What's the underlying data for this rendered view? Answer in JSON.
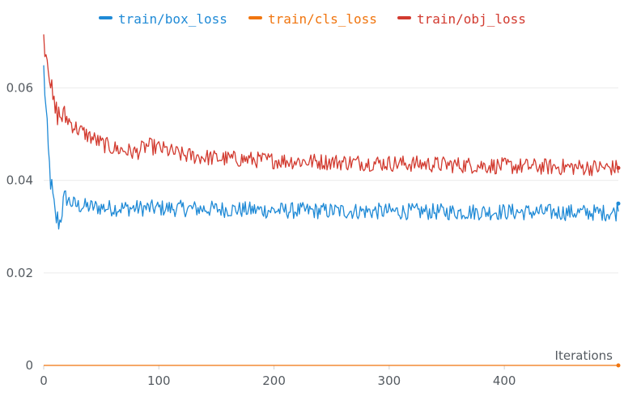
{
  "chart_data": {
    "type": "line",
    "title": "",
    "xlabel": "Iterations",
    "ylabel": "",
    "xlim": [
      0,
      499
    ],
    "ylim": [
      0,
      0.072
    ],
    "x_ticks": [
      0,
      100,
      200,
      300,
      400
    ],
    "x_tick_labels": [
      "0",
      "100",
      "200",
      "300",
      "400"
    ],
    "y_ticks": [
      0,
      0.02,
      0.04,
      0.06
    ],
    "y_tick_labels": [
      "0",
      "0.02",
      "0.04",
      "0.06"
    ],
    "grid": "horizontal",
    "legend_position": "top",
    "series": [
      {
        "name": "train/box_loss",
        "color": "#1f8ad6",
        "x": [
          0,
          2,
          4,
          6,
          8,
          10,
          12,
          14,
          16,
          18,
          20,
          22,
          25,
          30,
          40,
          60,
          80,
          100,
          150,
          200,
          250,
          300,
          350,
          400,
          450,
          497,
          499
        ],
        "values": [
          0.064,
          0.055,
          0.046,
          0.04,
          0.036,
          0.032,
          0.0315,
          0.031,
          0.034,
          0.0355,
          0.036,
          0.0355,
          0.035,
          0.0345,
          0.0343,
          0.034,
          0.034,
          0.034,
          0.0338,
          0.0335,
          0.0334,
          0.0333,
          0.0332,
          0.0332,
          0.0331,
          0.033,
          0.035
        ]
      },
      {
        "name": "train/cls_loss",
        "color": "#f0750f",
        "x": [
          0,
          100,
          200,
          300,
          400,
          499
        ],
        "values": [
          0,
          0,
          0,
          0,
          0,
          0
        ]
      },
      {
        "name": "train/obj_loss",
        "color": "#d23a2f",
        "x": [
          0,
          2,
          4,
          6,
          8,
          10,
          14,
          20,
          25,
          30,
          40,
          50,
          60,
          80,
          90,
          100,
          120,
          150,
          200,
          250,
          300,
          350,
          400,
          450,
          499
        ],
        "values": [
          0.071,
          0.068,
          0.066,
          0.061,
          0.057,
          0.055,
          0.054,
          0.0535,
          0.052,
          0.051,
          0.0495,
          0.048,
          0.047,
          0.046,
          0.0475,
          0.047,
          0.0455,
          0.0448,
          0.0443,
          0.044,
          0.0437,
          0.0434,
          0.0431,
          0.0429,
          0.0427
        ]
      }
    ]
  }
}
